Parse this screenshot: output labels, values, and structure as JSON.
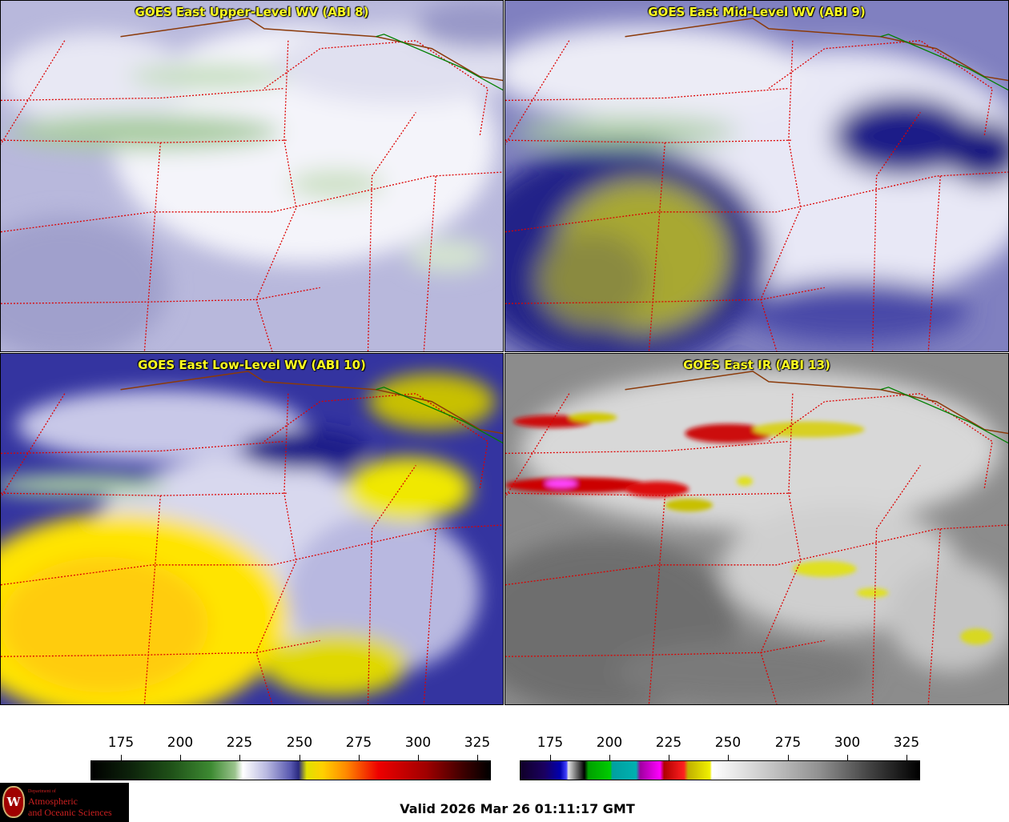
{
  "panels": [
    {
      "title": "GOES East Upper-Level WV (ABI 8)"
    },
    {
      "title": "GOES East Mid-Level WV (ABI 9)"
    },
    {
      "title": "GOES East Low-Level WV (ABI 10)"
    },
    {
      "title": "GOES East IR (ABI 13)"
    }
  ],
  "colorbar_left": {
    "ticks": [
      "175",
      "200",
      "225",
      "250",
      "275",
      "300",
      "325"
    ]
  },
  "colorbar_right": {
    "ticks": [
      "175",
      "200",
      "225",
      "250",
      "275",
      "300",
      "325"
    ]
  },
  "footer": {
    "valid_text": "Valid 2026 Mar 26 01:11:17 GMT"
  },
  "logo": {
    "seal_letter": "W",
    "dept_small": "Department of",
    "line1": "Atmospheric",
    "line2": "and Oceanic Sciences"
  }
}
